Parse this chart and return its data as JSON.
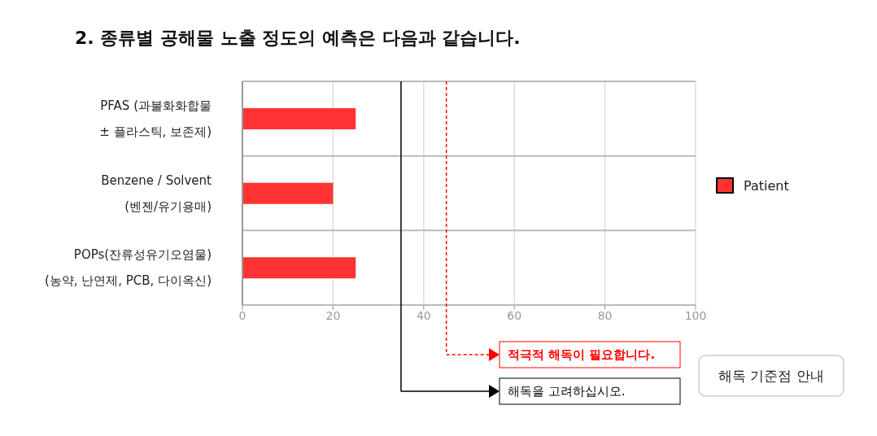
{
  "chart_data": {
    "type": "bar",
    "orientation": "horizontal",
    "title": "2. 종류별 공해물 노출 정도의 예측은 다음과 같습니다.",
    "categories": [
      "PFAS (과불화화합물\n±  플라스틱, 보존제)",
      "Benzene / Solvent\n(벤젠/유기용매)",
      "POPs(잔류성유기오염물)\n(농약, 난연제, PCB, 다이옥신)"
    ],
    "series": [
      {
        "name": "Patient",
        "color": "#ff3333",
        "values": [
          25,
          20,
          25
        ]
      }
    ],
    "xlim": [
      0,
      100
    ],
    "xticks": [
      0,
      20,
      40,
      60,
      80,
      100
    ],
    "grid": "x",
    "legend": "right",
    "ref_lines": [
      {
        "axis": "x",
        "value": 35,
        "label": "해독을 고려하십시오.",
        "color": "#000000",
        "line_style": "solid"
      },
      {
        "axis": "x",
        "value": 45,
        "label": "적극적 해독이 필요합니다.",
        "color": "#ff0000",
        "line_style": "dashed"
      }
    ],
    "annotations": [
      "해독 기준점 안내"
    ]
  }
}
